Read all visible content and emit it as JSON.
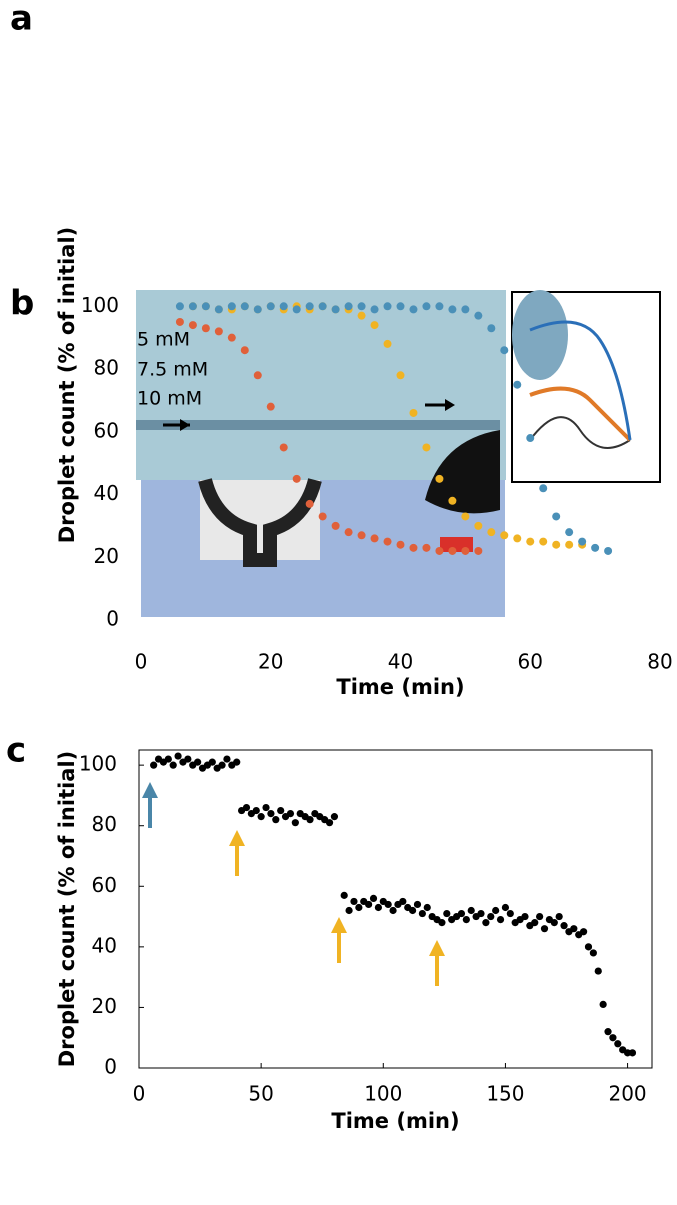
{
  "panel_labels": [
    "a",
    "b",
    "c"
  ],
  "chart_data": [
    {
      "type": "scatter",
      "x_label": "Time (min)",
      "y_label": "Droplet count (% of initial)",
      "xlim": [
        0,
        80
      ],
      "ylim": [
        0,
        102
      ],
      "xticks": [
        0,
        20,
        40,
        60,
        80
      ],
      "yticks": [
        0,
        20,
        40,
        60,
        80,
        100
      ],
      "series": [
        {
          "name": "5 mM",
          "color": "#e0603a",
          "x": [
            6,
            8,
            10,
            12,
            14,
            16,
            18,
            20,
            22,
            24,
            26,
            28,
            30,
            32,
            34,
            36,
            38,
            40,
            42,
            44,
            46,
            48,
            50,
            52
          ],
          "values": [
            95,
            94,
            93,
            92,
            90,
            86,
            78,
            68,
            55,
            45,
            37,
            33,
            30,
            28,
            27,
            26,
            25,
            24,
            23,
            23,
            22,
            22,
            22,
            22
          ]
        },
        {
          "name": "7.5 mM",
          "color": "#f0b323",
          "x": [
            8,
            10,
            12,
            14,
            16,
            18,
            20,
            22,
            24,
            26,
            28,
            30,
            32,
            34,
            36,
            38,
            40,
            42,
            44,
            46,
            48,
            50,
            52,
            54,
            56,
            58,
            60,
            62,
            64,
            66,
            68
          ],
          "values": [
            100,
            100,
            99,
            99,
            100,
            99,
            100,
            99,
            100,
            99,
            100,
            99,
            99,
            97,
            94,
            88,
            78,
            66,
            55,
            45,
            38,
            33,
            30,
            28,
            27,
            26,
            25,
            25,
            24,
            24,
            24
          ]
        },
        {
          "name": "10 mM",
          "color": "#4a90b8",
          "x": [
            6,
            8,
            10,
            12,
            14,
            16,
            18,
            20,
            22,
            24,
            26,
            28,
            30,
            32,
            34,
            36,
            38,
            40,
            42,
            44,
            46,
            48,
            50,
            52,
            54,
            56,
            58,
            60,
            62,
            64,
            66,
            68,
            70,
            72
          ],
          "values": [
            100,
            100,
            100,
            99,
            100,
            100,
            99,
            100,
            100,
            99,
            100,
            100,
            99,
            100,
            100,
            99,
            100,
            100,
            99,
            100,
            100,
            99,
            99,
            97,
            93,
            86,
            75,
            58,
            42,
            33,
            28,
            25,
            23,
            22
          ]
        }
      ]
    },
    {
      "type": "scatter",
      "x_label": "Time (min)",
      "y_label": "Droplet count (% of initial)",
      "xlim": [
        0,
        210
      ],
      "ylim": [
        0,
        105
      ],
      "xticks": [
        0,
        50,
        100,
        150,
        200
      ],
      "yticks": [
        0,
        20,
        40,
        60,
        80,
        100
      ],
      "frame": true,
      "series": [
        {
          "name": null,
          "color": "#000000",
          "x": [
            6,
            8,
            10,
            12,
            14,
            16,
            18,
            20,
            22,
            24,
            26,
            28,
            30,
            32,
            34,
            36,
            38,
            40,
            42,
            44,
            46,
            48,
            50,
            52,
            54,
            56,
            58,
            60,
            62,
            64,
            66,
            68,
            70,
            72,
            74,
            76,
            78,
            80,
            84,
            86,
            88,
            90,
            92,
            94,
            96,
            98,
            100,
            102,
            104,
            106,
            108,
            110,
            112,
            114,
            116,
            118,
            120,
            122,
            124,
            126,
            128,
            130,
            132,
            134,
            136,
            138,
            140,
            142,
            144,
            146,
            148,
            150,
            152,
            154,
            156,
            158,
            160,
            162,
            164,
            166,
            168,
            170,
            172,
            174,
            176,
            178,
            180,
            182,
            184,
            186,
            188,
            190,
            192,
            194,
            196,
            198,
            200,
            202
          ],
          "values": [
            100,
            102,
            101,
            102,
            100,
            103,
            101,
            102,
            100,
            101,
            99,
            100,
            101,
            99,
            100,
            102,
            100,
            101,
            85,
            86,
            84,
            85,
            83,
            86,
            84,
            82,
            85,
            83,
            84,
            81,
            84,
            83,
            82,
            84,
            83,
            82,
            81,
            83,
            57,
            52,
            55,
            53,
            55,
            54,
            56,
            53,
            55,
            54,
            52,
            54,
            55,
            53,
            52,
            54,
            51,
            53,
            50,
            49,
            48,
            51,
            49,
            50,
            51,
            49,
            52,
            50,
            51,
            48,
            50,
            52,
            49,
            53,
            51,
            48,
            49,
            50,
            47,
            48,
            50,
            46,
            49,
            48,
            50,
            47,
            45,
            46,
            44,
            45,
            40,
            38,
            32,
            21,
            12,
            10,
            8,
            6,
            5,
            5
          ]
        }
      ]
    }
  ]
}
